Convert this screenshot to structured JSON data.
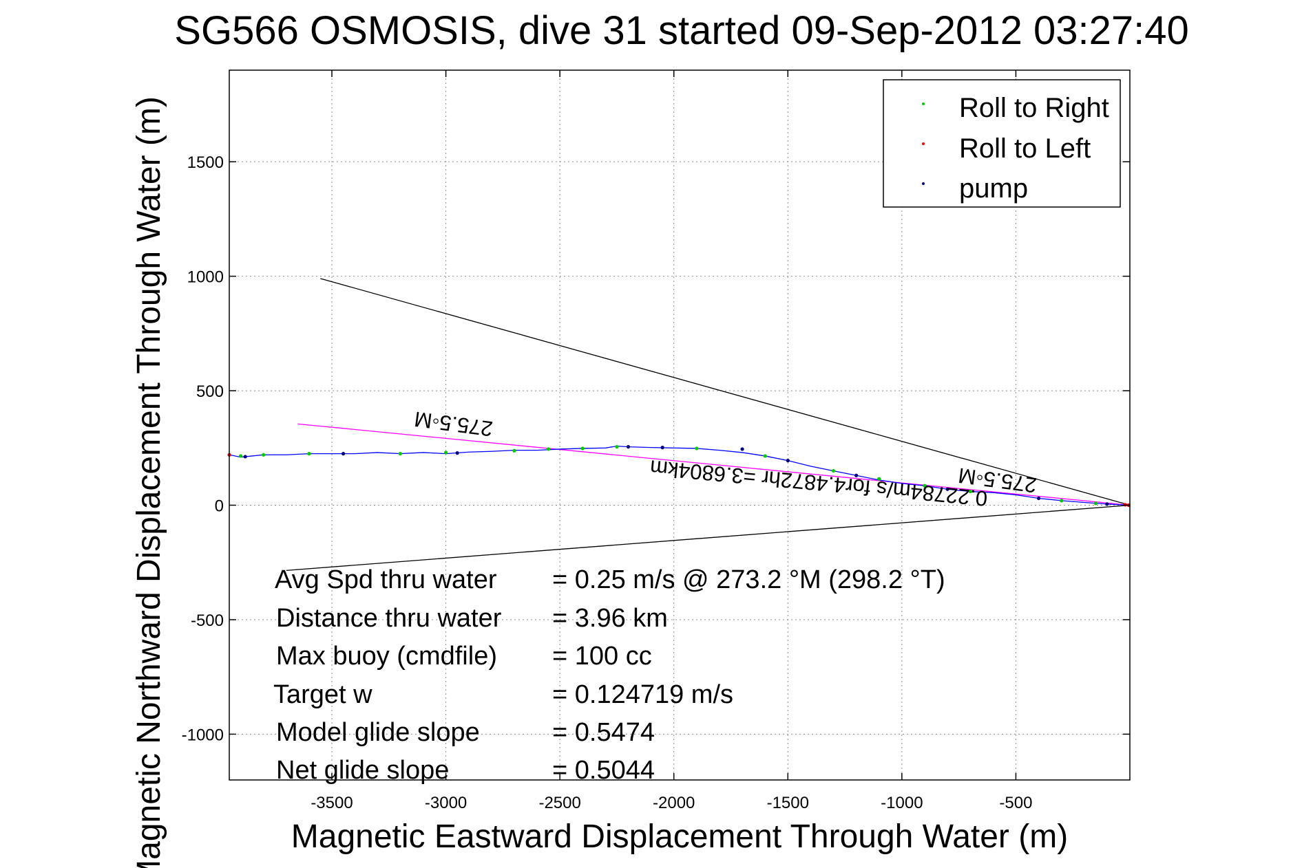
{
  "chart_data": {
    "type": "scatter",
    "title": "SG566 OSMOSIS, dive 31 started 09-Sep-2012 03:27:40",
    "xlabel": "Magnetic Eastward Displacement Through Water (m)",
    "ylabel": "Magnetic Northward Displacement Through Water (m)",
    "xlim": [
      -3950,
      0
    ],
    "ylim": [
      -1200,
      1900
    ],
    "xticks": [
      -3500,
      -3000,
      -2500,
      -2000,
      -1500,
      -1000,
      -500
    ],
    "yticks": [
      1500,
      1000,
      500,
      0,
      -500,
      -1000
    ],
    "grid": true,
    "legend_position": "top-right",
    "legend": [
      {
        "label": "Roll to Right",
        "color": "#00cc00"
      },
      {
        "label": "Roll to Left",
        "color": "#ff0000"
      },
      {
        "label": "pump",
        "color": "#000080"
      }
    ],
    "track": {
      "color": "#0000ff",
      "x": [
        -3950,
        -3900,
        -3850,
        -3800,
        -3700,
        -3600,
        -3500,
        -3400,
        -3300,
        -3200,
        -3100,
        -3000,
        -2900,
        -2800,
        -2700,
        -2600,
        -2500,
        -2400,
        -2300,
        -2250,
        -2200,
        -2100,
        -2000,
        -1900,
        -1800,
        -1700,
        -1600,
        -1500,
        -1400,
        -1300,
        -1200,
        -1100,
        -1000,
        -900,
        -800,
        -700,
        -600,
        -500,
        -400,
        -300,
        -200,
        -100,
        0
      ],
      "y": [
        220,
        210,
        215,
        220,
        220,
        225,
        225,
        225,
        230,
        225,
        230,
        225,
        232,
        235,
        240,
        240,
        245,
        248,
        250,
        258,
        255,
        252,
        250,
        248,
        240,
        230,
        215,
        195,
        170,
        150,
        130,
        110,
        95,
        85,
        70,
        60,
        55,
        45,
        30,
        20,
        12,
        5,
        0
      ]
    },
    "roll_right_points": {
      "x": [
        -3900,
        -3800,
        -3600,
        -3200,
        -3000,
        -2700,
        -2550,
        -2400,
        -2250,
        -1900,
        -1600,
        -1300,
        -1100,
        -900,
        -700,
        -300,
        -150
      ],
      "y": [
        215,
        220,
        225,
        225,
        230,
        238,
        245,
        248,
        255,
        248,
        215,
        150,
        115,
        85,
        60,
        20,
        8
      ]
    },
    "roll_left_points": {
      "x": [
        -3950,
        -20,
        -5
      ],
      "y": [
        220,
        2,
        0
      ]
    },
    "pump_points": {
      "x": [
        -3880,
        -3450,
        -2950,
        -2200,
        -2050,
        -1700,
        -1500,
        -1200,
        -800,
        -400,
        -100
      ],
      "y": [
        212,
        225,
        228,
        255,
        252,
        245,
        195,
        130,
        70,
        30,
        5
      ]
    },
    "reference_lines": [
      {
        "color": "#000000",
        "x": [
          -3550,
          0
        ],
        "y": [
          990,
          0
        ]
      },
      {
        "color": "#000000",
        "x": [
          -3700,
          0
        ],
        "y": [
          -285,
          0
        ]
      },
      {
        "color": "#ff00ff",
        "x": [
          -3650,
          0
        ],
        "y": [
          355,
          0
        ]
      }
    ],
    "rotated_labels": [
      "275.5◦M",
      "275.5◦M",
      "0.22784m/s for4.4872hr =3.6804km"
    ],
    "annotations": [
      {
        "name": "Avg Spd thru water",
        "value": "=  0.25 m/s @ 273.2 °M (298.2 °T)"
      },
      {
        "name": "Distance thru water",
        "value": "=  3.96 km"
      },
      {
        "name": "Max buoy (cmdfile)",
        "value": "= 100 cc"
      },
      {
        "name": "Target w",
        "value": "= 0.124719 m/s"
      },
      {
        "name": "Model glide slope",
        "value": "= 0.5474"
      },
      {
        "name": "Net glide slope",
        "value": "= 0.5044"
      }
    ]
  }
}
